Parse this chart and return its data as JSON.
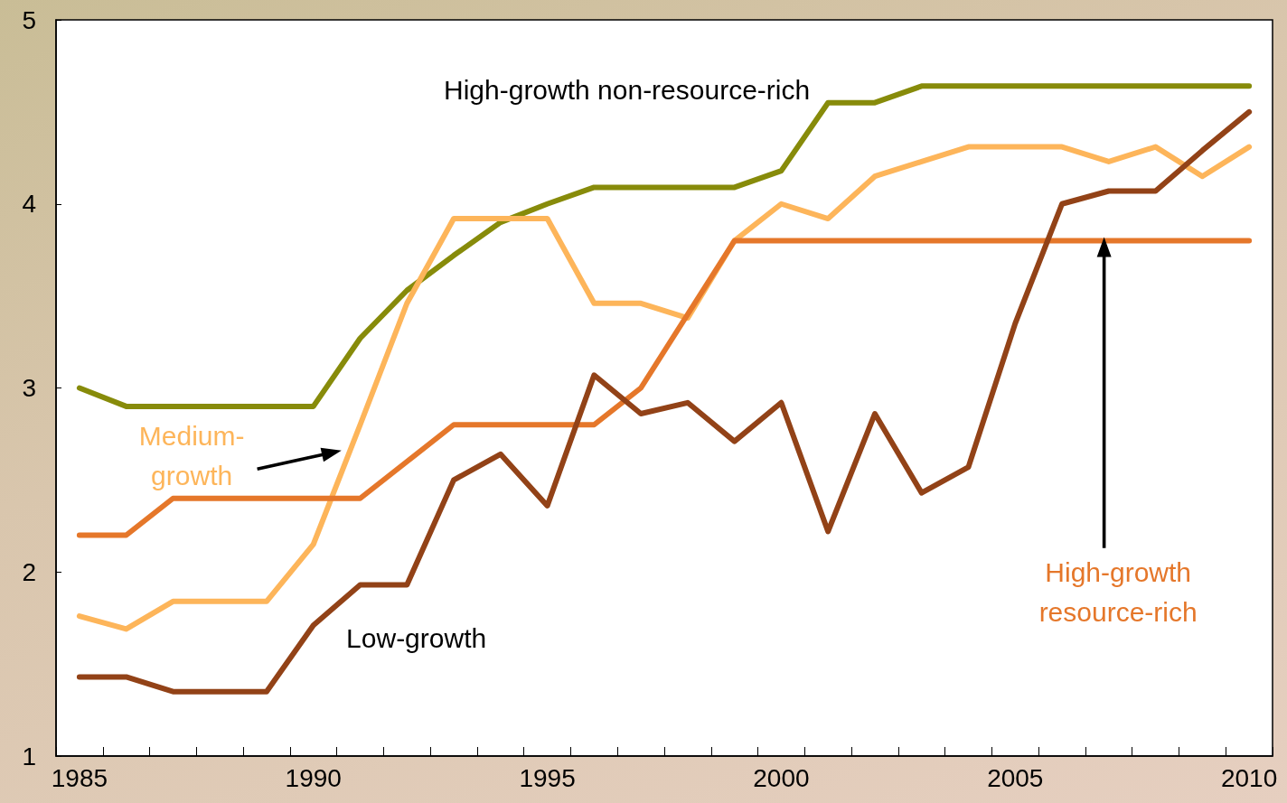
{
  "chart_data": {
    "type": "line",
    "categories": [
      "1985",
      null,
      null,
      null,
      null,
      "1990",
      null,
      null,
      null,
      null,
      "1995",
      null,
      null,
      null,
      null,
      "2000",
      null,
      null,
      null,
      null,
      "2005",
      null,
      null,
      null,
      null,
      "2010"
    ],
    "series": [
      {
        "name": "High-growth non-resource-rich",
        "color": "#878b0a",
        "values": [
          3.0,
          2.9,
          2.9,
          2.9,
          2.9,
          2.9,
          3.27,
          3.53,
          3.72,
          3.9,
          4.0,
          4.09,
          4.09,
          4.09,
          4.09,
          4.18,
          4.55,
          4.55,
          4.64,
          4.64,
          4.64,
          4.64,
          4.64,
          4.64,
          4.64,
          4.64
        ]
      },
      {
        "name": "Medium-growth",
        "color": "#fdb55a",
        "values": [
          1.76,
          1.69,
          1.84,
          1.84,
          1.84,
          2.15,
          2.8,
          3.46,
          3.92,
          3.92,
          3.92,
          3.46,
          3.46,
          3.38,
          3.8,
          4.0,
          3.92,
          4.15,
          4.23,
          4.31,
          4.31,
          4.31,
          4.23,
          4.31,
          4.15,
          4.31
        ]
      },
      {
        "name": "High-growth resource-rich",
        "color": "#e5772a",
        "values": [
          2.2,
          2.2,
          2.4,
          2.4,
          2.4,
          2.4,
          2.4,
          2.6,
          2.8,
          2.8,
          2.8,
          2.8,
          3.0,
          3.4,
          3.8,
          3.8,
          3.8,
          3.8,
          3.8,
          3.8,
          3.8,
          3.8,
          3.8,
          3.8,
          3.8,
          3.8
        ]
      },
      {
        "name": "Low-growth",
        "color": "#924217",
        "values": [
          1.43,
          1.43,
          1.35,
          1.35,
          1.35,
          1.71,
          1.93,
          1.93,
          2.5,
          2.64,
          2.36,
          3.07,
          2.86,
          2.92,
          2.71,
          2.92,
          2.22,
          2.86,
          2.43,
          2.57,
          3.35,
          4.0,
          4.07,
          4.07,
          4.29,
          4.5
        ]
      }
    ],
    "ylim": [
      1,
      5
    ],
    "yticks": [
      1,
      2,
      3,
      4,
      5
    ],
    "grid": false,
    "legend": false,
    "marker": "none",
    "line_style": "solid"
  }
}
